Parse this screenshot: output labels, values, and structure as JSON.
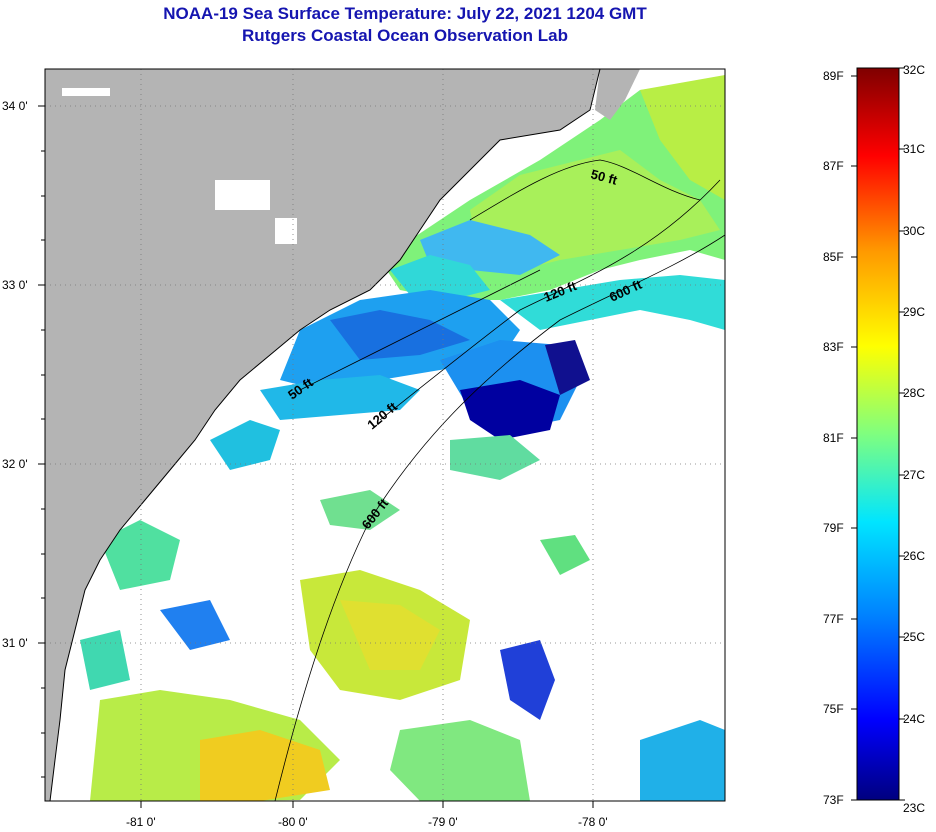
{
  "title": {
    "line1": "NOAA-19 Sea Surface Temperature:  July 22, 2021 1204 GMT",
    "line2": "Rutgers Coastal Ocean Observation Lab"
  },
  "map": {
    "lat_labels": [
      "34 0'",
      "33 0'",
      "32 0'",
      "31 0'"
    ],
    "lon_labels": [
      "-81 0'",
      "-80 0'",
      "-79 0'",
      "-78 0'"
    ],
    "lat_values": [
      34,
      33,
      32,
      31
    ],
    "lon_values": [
      -81,
      -80,
      -79,
      -78
    ],
    "contour_labels": [
      "50 ft",
      "120 ft",
      "600 ft",
      "50 ft",
      "120 ft",
      "600 ft"
    ],
    "colors": {
      "land": "#b4b4b4",
      "no_data": "#ffffff",
      "coastline": "#000000"
    }
  },
  "colorbar": {
    "fahrenheit_labels": [
      "89F",
      "87F",
      "85F",
      "83F",
      "81F",
      "79F",
      "77F",
      "75F",
      "73F"
    ],
    "celsius_labels": [
      "32C",
      "31C",
      "30C",
      "29C",
      "28C",
      "27C",
      "26C",
      "25C",
      "24C",
      "23C"
    ],
    "range_c": [
      23,
      32
    ],
    "stops": [
      "#00007f",
      "#0000ff",
      "#0080ff",
      "#00e5ff",
      "#7fff7f",
      "#ffff00",
      "#ff9900",
      "#ff0000",
      "#7f0000"
    ]
  }
}
